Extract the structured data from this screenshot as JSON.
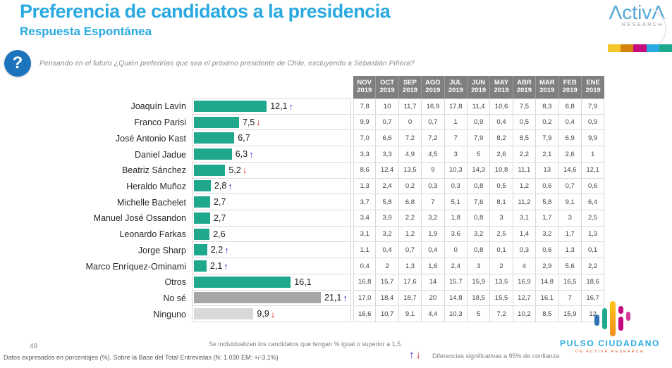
{
  "header": {
    "title": "Preferencia de candidatos a la presidencia",
    "subtitle": "Respuesta Espontánea",
    "question": "Pensando en el futuro ¿Quién preferirías que sea el próximo presidente de Chile, excluyendo a Sebastián Piñera?"
  },
  "logos": {
    "activa": {
      "name": "ActivA",
      "sub": "RESEARCH"
    },
    "pulso": {
      "line1": "PULSO CIUDADANO",
      "line2": "DE ACTIVA RESEARCH"
    }
  },
  "colors": {
    "accent_blue": "#29A9E0",
    "teal": "#1FA88C",
    "gray": "#A6A6A6",
    "lightgray": "#D9D9D9",
    "header_gray": "#7F7F7F",
    "arrow_up": "#3333CC",
    "arrow_down": "#DD2222",
    "strip": [
      "#F5C62C",
      "#D4820A",
      "#C40C7C",
      "#29ABE2",
      "#1CA98C"
    ]
  },
  "chart_data": {
    "type": "bar",
    "orientation": "horizontal",
    "title": "Preferencia de candidatos a la presidencia",
    "subtitle": "Respuesta Espontánea",
    "categories": [
      "Joaquín Lavín",
      "Franco Parisi",
      "José Antonio Kast",
      "Daniel Jadue",
      "Beatriz Sánchez",
      "Heraldo Muñoz",
      "Michelle Bachelet",
      "Manuel José  Ossandon",
      "Leonardo Farkas",
      "Jorge Sharp",
      "Marco Enríquez-Ominami",
      "Otros",
      "No sé",
      "Ninguno"
    ],
    "values": [
      12.1,
      7.5,
      6.7,
      6.3,
      5.2,
      2.8,
      2.7,
      2.7,
      2.6,
      2.2,
      2.1,
      16.1,
      21.1,
      9.9
    ],
    "trends": [
      "up",
      "down",
      null,
      "up",
      "down",
      "up",
      null,
      null,
      null,
      "up",
      "up",
      null,
      "up",
      "down"
    ],
    "xlim": [
      0,
      26.5
    ],
    "grid": false,
    "history_columns": [
      "NOV 2019",
      "OCT 2019",
      "SEP 2019",
      "AGO 2019",
      "JUL 2019",
      "JUN 2019",
      "MAY 2019",
      "ABR 2019",
      "MAR 2019",
      "FEB 2019",
      "ENE 2019"
    ],
    "history": [
      [
        7.8,
        10,
        11.7,
        16.9,
        17.8,
        11.4,
        10.6,
        7.5,
        8.3,
        6.8,
        7.9
      ],
      [
        9.9,
        0.7,
        0,
        0.7,
        1,
        0.9,
        0.4,
        0.5,
        0.2,
        0.4,
        0.9
      ],
      [
        7.0,
        6.6,
        7.2,
        7.2,
        7,
        7.9,
        8.2,
        8.5,
        7.9,
        6.9,
        9.9
      ],
      [
        3.3,
        3.3,
        4.9,
        4.5,
        3,
        5,
        2.6,
        2.2,
        2.1,
        2.6,
        1
      ],
      [
        8.6,
        12.4,
        13.5,
        9,
        10.3,
        14.3,
        10.8,
        11.1,
        13,
        14.6,
        12.1
      ],
      [
        1.3,
        2.4,
        0.2,
        0.3,
        0.3,
        0.8,
        0.5,
        1.2,
        0.6,
        0.7,
        0.6
      ],
      [
        3.7,
        5.8,
        6.8,
        7,
        5.1,
        7.6,
        8.1,
        11.2,
        5.8,
        9.1,
        6.4
      ],
      [
        3.4,
        3.9,
        2.2,
        3.2,
        1.8,
        0.8,
        3,
        3.1,
        1.7,
        3,
        2.5
      ],
      [
        3.1,
        3.2,
        1.2,
        1.9,
        3.6,
        3.2,
        2.5,
        1.4,
        3.2,
        1.7,
        1.3
      ],
      [
        1.1,
        0.4,
        0.7,
        0.4,
        0,
        0.8,
        0.1,
        0.3,
        0.6,
        1.3,
        0.1
      ],
      [
        0.4,
        2,
        1.3,
        1.6,
        2.4,
        3,
        2,
        4,
        2.9,
        5.6,
        2.2
      ],
      [
        16.8,
        15.7,
        17.6,
        14,
        15.7,
        15.9,
        13.5,
        16.9,
        14.8,
        16.5,
        18.6
      ],
      [
        17.0,
        18.4,
        18.7,
        20,
        14.8,
        18.5,
        15.5,
        12.7,
        16.1,
        7,
        16.7
      ],
      [
        16.6,
        10.7,
        9.1,
        4.4,
        10.3,
        5,
        7.2,
        10.2,
        8.5,
        15.9,
        12
      ]
    ]
  },
  "table": {
    "columns": [
      {
        "month": "NOV",
        "year": "2019"
      },
      {
        "month": "OCT",
        "year": "2019"
      },
      {
        "month": "SEP",
        "year": "2019"
      },
      {
        "month": "AGO",
        "year": "2019"
      },
      {
        "month": "JUL",
        "year": "2019"
      },
      {
        "month": "JUN",
        "year": "2019"
      },
      {
        "month": "MAY",
        "year": "2019"
      },
      {
        "month": "ABR",
        "year": "2019"
      },
      {
        "month": "MAR",
        "year": "2019"
      },
      {
        "month": "FEB",
        "year": "2019"
      },
      {
        "month": "ENE",
        "year": "2019"
      }
    ],
    "rows": [
      {
        "label": "Joaquín Lavín",
        "value": "12,1",
        "num": 12.1,
        "trend": "up",
        "color": "teal",
        "values": [
          "7,8",
          "10",
          "11,7",
          "16,9",
          "17,8",
          "11,4",
          "10,6",
          "7,5",
          "8,3",
          "6,8",
          "7,9"
        ]
      },
      {
        "label": "Franco Parisi",
        "value": "7,5",
        "num": 7.5,
        "trend": "down",
        "color": "teal",
        "values": [
          "9,9",
          "0,7",
          "0",
          "0,7",
          "1",
          "0,9",
          "0,4",
          "0,5",
          "0,2",
          "0,4",
          "0,9"
        ]
      },
      {
        "label": "José Antonio Kast",
        "value": "6,7",
        "num": 6.7,
        "trend": null,
        "color": "teal",
        "values": [
          "7,0",
          "6,6",
          "7,2",
          "7,2",
          "7",
          "7,9",
          "8,2",
          "8,5",
          "7,9",
          "6,9",
          "9,9"
        ]
      },
      {
        "label": "Daniel Jadue",
        "value": "6,3",
        "num": 6.3,
        "trend": "up",
        "color": "teal",
        "values": [
          "3,3",
          "3,3",
          "4,9",
          "4,5",
          "3",
          "5",
          "2,6",
          "2,2",
          "2,1",
          "2,6",
          "1"
        ]
      },
      {
        "label": "Beatriz Sánchez",
        "value": "5,2",
        "num": 5.2,
        "trend": "down",
        "color": "teal",
        "values": [
          "8,6",
          "12,4",
          "13,5",
          "9",
          "10,3",
          "14,3",
          "10,8",
          "11,1",
          "13",
          "14,6",
          "12,1"
        ]
      },
      {
        "label": "Heraldo Muñoz",
        "value": "2,8",
        "num": 2.8,
        "trend": "up",
        "color": "teal",
        "values": [
          "1,3",
          "2,4",
          "0,2",
          "0,3",
          "0,3",
          "0,8",
          "0,5",
          "1,2",
          "0,6",
          "0,7",
          "0,6"
        ]
      },
      {
        "label": "Michelle Bachelet",
        "value": "2,7",
        "num": 2.7,
        "trend": null,
        "color": "teal",
        "values": [
          "3,7",
          "5,8",
          "6,8",
          "7",
          "5,1",
          "7,6",
          "8,1",
          "11,2",
          "5,8",
          "9,1",
          "6,4"
        ]
      },
      {
        "label": "Manuel José  Ossandon",
        "value": "2,7",
        "num": 2.7,
        "trend": null,
        "color": "teal",
        "values": [
          "3,4",
          "3,9",
          "2,2",
          "3,2",
          "1,8",
          "0,8",
          "3",
          "3,1",
          "1,7",
          "3",
          "2,5"
        ]
      },
      {
        "label": "Leonardo Farkas",
        "value": "2,6",
        "num": 2.6,
        "trend": null,
        "color": "teal",
        "values": [
          "3,1",
          "3,2",
          "1,2",
          "1,9",
          "3,6",
          "3,2",
          "2,5",
          "1,4",
          "3,2",
          "1,7",
          "1,3"
        ]
      },
      {
        "label": "Jorge Sharp",
        "value": "2,2",
        "num": 2.2,
        "trend": "up",
        "color": "teal",
        "values": [
          "1,1",
          "0,4",
          "0,7",
          "0,4",
          "0",
          "0,8",
          "0,1",
          "0,3",
          "0,6",
          "1,3",
          "0,1"
        ]
      },
      {
        "label": "Marco Enríquez-Ominami",
        "value": "2,1",
        "num": 2.1,
        "trend": "up",
        "color": "teal",
        "values": [
          "0,4",
          "2",
          "1,3",
          "1,6",
          "2,4",
          "3",
          "2",
          "4",
          "2,9",
          "5,6",
          "2,2"
        ]
      },
      {
        "label": "Otros",
        "value": "16,1",
        "num": 16.1,
        "trend": null,
        "color": "teal",
        "values": [
          "16,8",
          "15,7",
          "17,6",
          "14",
          "15,7",
          "15,9",
          "13,5",
          "16,9",
          "14,8",
          "16,5",
          "18,6"
        ]
      },
      {
        "label": "No sé",
        "value": "21,1",
        "num": 21.1,
        "trend": "up",
        "color": "gray",
        "values": [
          "17,0",
          "18,4",
          "18,7",
          "20",
          "14,8",
          "18,5",
          "15,5",
          "12,7",
          "16,1",
          "7",
          "16,7"
        ]
      },
      {
        "label": "Ninguno",
        "value": "9,9",
        "num": 9.9,
        "trend": "down",
        "color": "lightgray",
        "values": [
          "16,6",
          "10,7",
          "9,1",
          "4,4",
          "10,3",
          "5",
          "7,2",
          "10,2",
          "8,5",
          "15,9",
          "12"
        ]
      }
    ]
  },
  "footer": {
    "footnote": "Se individualizan los candidatos que tengan % igual o superior a 1,5.",
    "page_number": "49",
    "datos": "Datos expresados en porcentajes (%). Sobre la Base del Total Entrevistas (N: 1.030 EM: +/-3,1%)",
    "legend": "Diferencias  significativas a 95% de confianza"
  }
}
